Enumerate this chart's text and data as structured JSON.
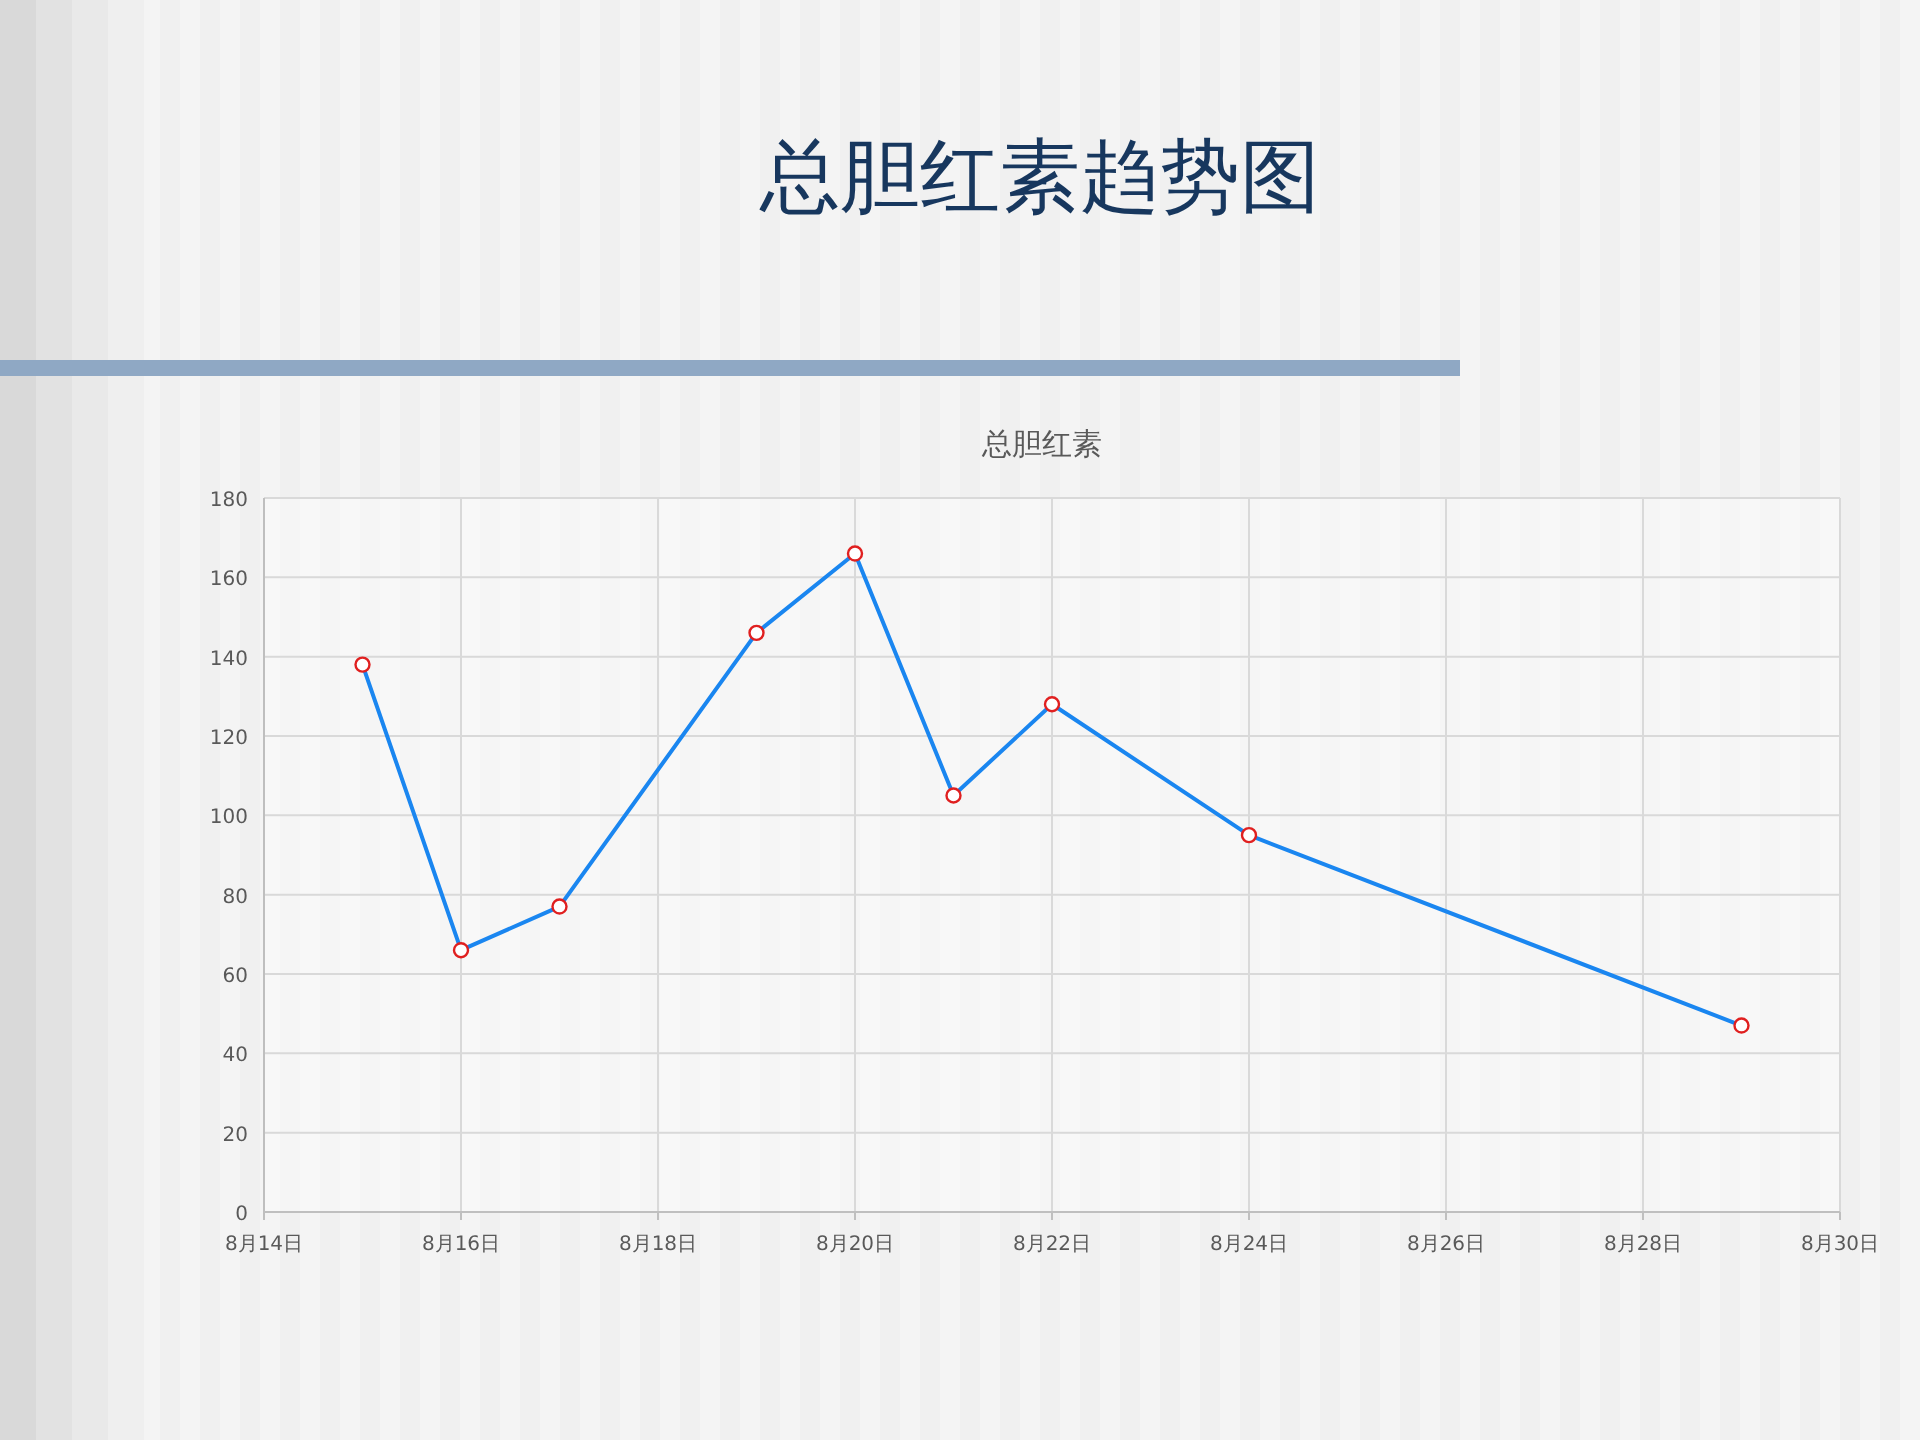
{
  "chart_data": {
    "type": "line",
    "title": "总胆红素趋势图",
    "subtitle": "总胆红素",
    "x": [
      "--08-15",
      "--08-16",
      "--08-17",
      "--08-19",
      "--08-20",
      "--08-21",
      "--08-22",
      "--08-24",
      "--08-29"
    ],
    "series": [
      {
        "color": "#1a86f0",
        "values": [
          138,
          66,
          77,
          146,
          166,
          105,
          128,
          95,
          47
        ]
      }
    ],
    "xlim": [
      "--08-14",
      "--08-30"
    ],
    "xticks": [
      {
        "value": "--08-14",
        "label": "8月14日"
      },
      {
        "value": "--08-16",
        "label": "8月16日"
      },
      {
        "value": "--08-18",
        "label": "8月18日"
      },
      {
        "value": "--08-20",
        "label": "8月20日"
      },
      {
        "value": "--08-22",
        "label": "8月22日"
      },
      {
        "value": "--08-24",
        "label": "8月24日"
      },
      {
        "value": "--08-26",
        "label": "8月26日"
      },
      {
        "value": "--08-28",
        "label": "8月28日"
      },
      {
        "value": "--08-30",
        "label": "8月30日"
      }
    ],
    "ylim": [
      0,
      180
    ],
    "yticks": [
      0,
      20,
      40,
      60,
      80,
      100,
      120,
      140,
      160,
      180
    ],
    "grid": true,
    "marker": "circle",
    "line_style": "solid"
  }
}
